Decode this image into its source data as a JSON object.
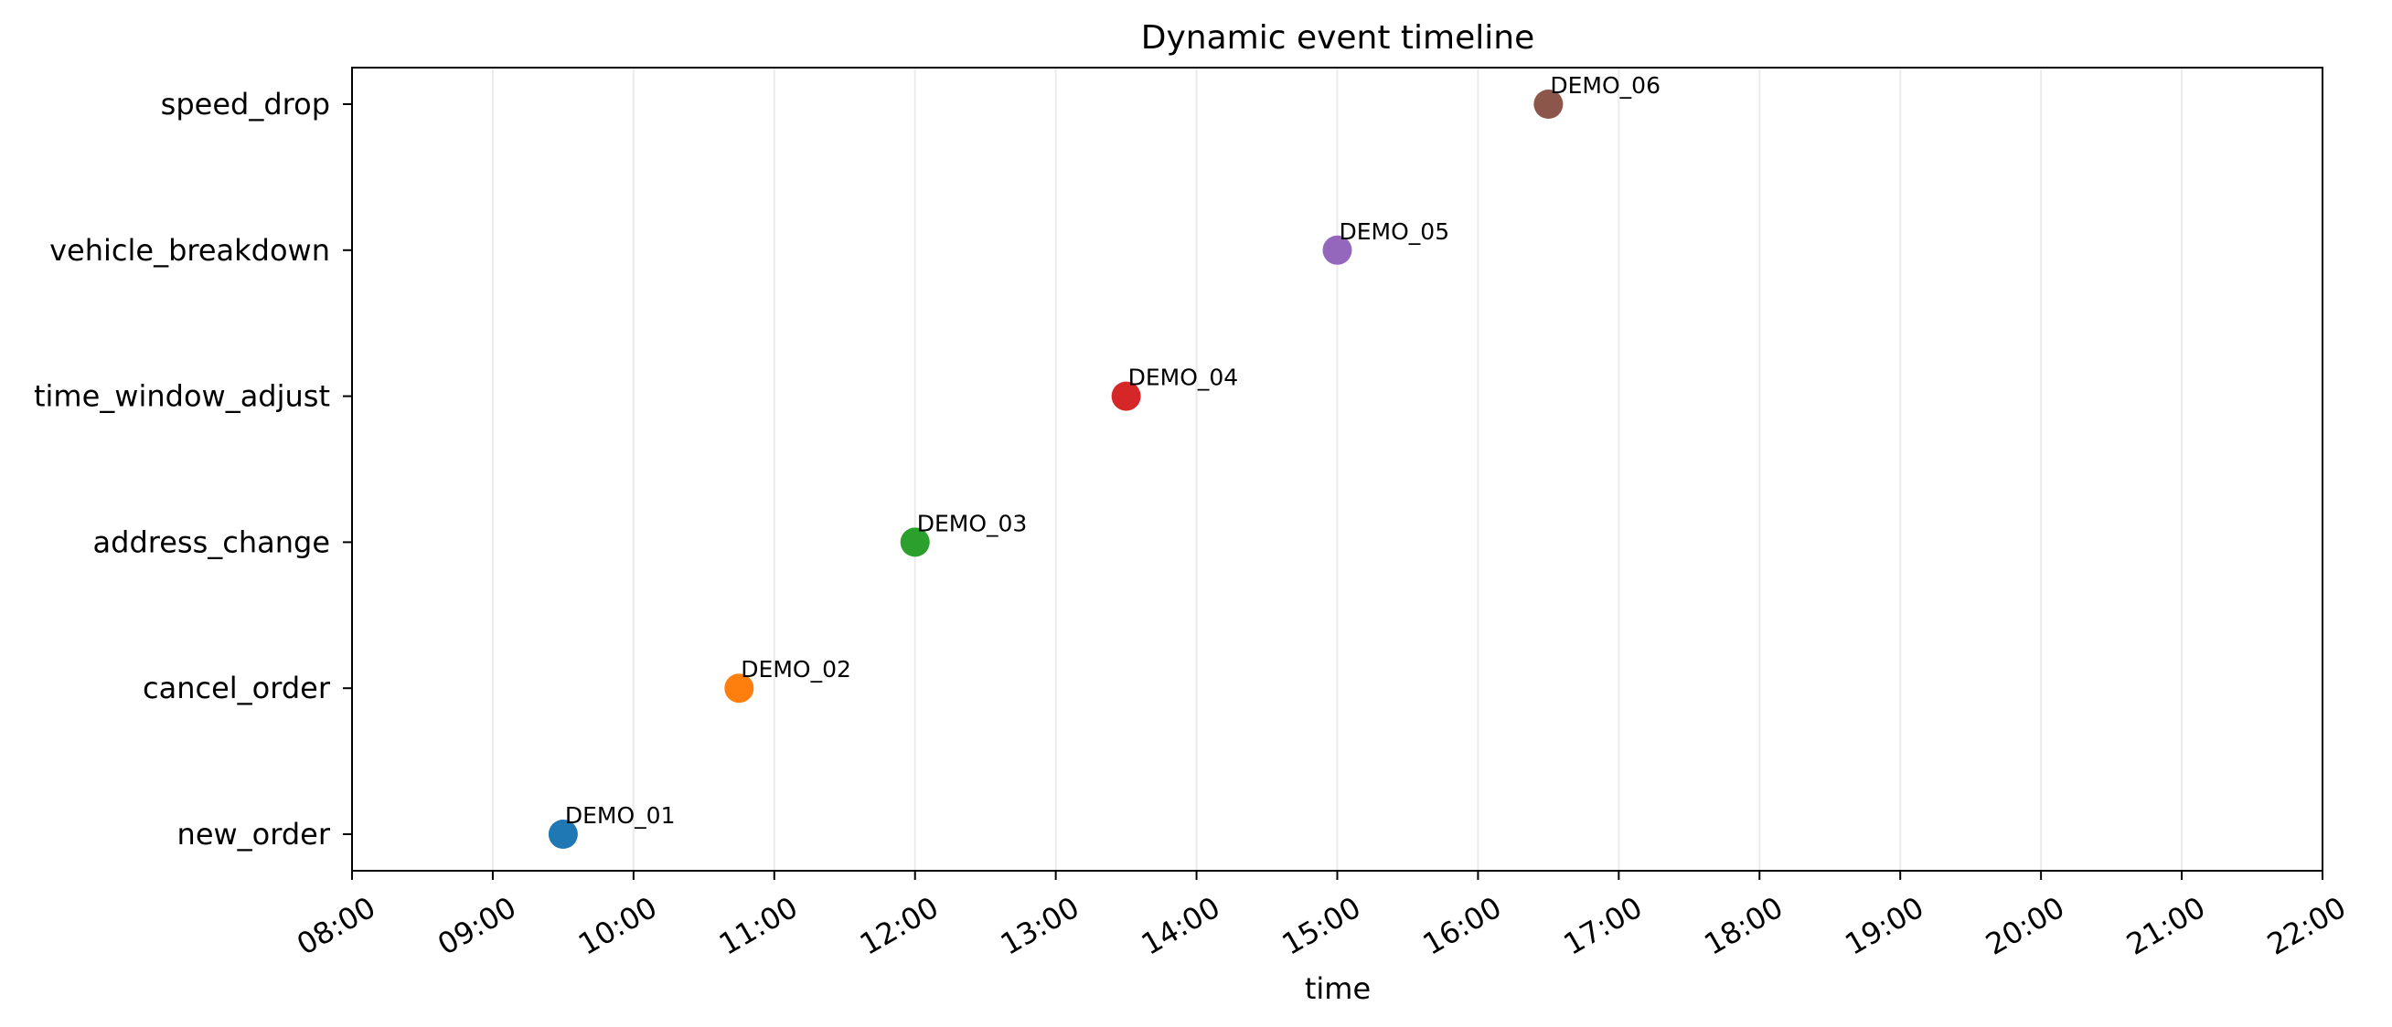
{
  "chart_data": {
    "type": "scatter",
    "title": "Dynamic event timeline",
    "xlabel": "time",
    "ylabel": "",
    "x_ticks": [
      "08:00",
      "09:00",
      "10:00",
      "11:00",
      "12:00",
      "13:00",
      "14:00",
      "15:00",
      "16:00",
      "17:00",
      "18:00",
      "19:00",
      "20:00",
      "21:00",
      "22:00"
    ],
    "x_range_hours": [
      8,
      22
    ],
    "y_categories": [
      "new_order",
      "cancel_order",
      "address_change",
      "time_window_adjust",
      "vehicle_breakdown",
      "speed_drop"
    ],
    "grid": "vertical-x-only",
    "points": [
      {
        "label": "DEMO_01",
        "category": "new_order",
        "time_hours": 9.5,
        "color": "#1f77b4"
      },
      {
        "label": "DEMO_02",
        "category": "cancel_order",
        "time_hours": 10.75,
        "color": "#ff7f0e"
      },
      {
        "label": "DEMO_03",
        "category": "address_change",
        "time_hours": 12.0,
        "color": "#2ca02c"
      },
      {
        "label": "DEMO_04",
        "category": "time_window_adjust",
        "time_hours": 13.5,
        "color": "#d62728"
      },
      {
        "label": "DEMO_05",
        "category": "vehicle_breakdown",
        "time_hours": 15.0,
        "color": "#9467bd"
      },
      {
        "label": "DEMO_06",
        "category": "speed_drop",
        "time_hours": 16.5,
        "color": "#8c564b"
      }
    ]
  }
}
